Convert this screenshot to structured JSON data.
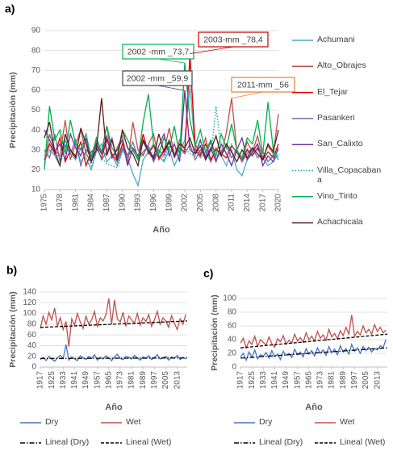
{
  "chart_data": [
    {
      "type": "line",
      "panel_label": "a)",
      "x_label": "Año",
      "y_label": "Precipitación (mm)",
      "x": [
        1975,
        1976,
        1977,
        1978,
        1979,
        1980,
        1981,
        1982,
        1983,
        1984,
        1985,
        1986,
        1987,
        1988,
        1989,
        1990,
        1991,
        1992,
        1993,
        1994,
        1995,
        1996,
        1997,
        1998,
        1999,
        2000,
        2001,
        2002,
        2003,
        2004,
        2005,
        2006,
        2007,
        2008,
        2009,
        2010,
        2011,
        2012,
        2013,
        2014,
        2015,
        2016,
        2017,
        2018,
        2019,
        2020
      ],
      "xlim": [
        1975,
        2020
      ],
      "xticks": [
        1975,
        1978,
        1981,
        1984,
        1987,
        1990,
        1993,
        1996,
        1999,
        2002,
        2005,
        2008,
        2011,
        2014,
        2017,
        2020
      ],
      "ylim": [
        10,
        90
      ],
      "yticks": [
        10,
        20,
        30,
        40,
        50,
        60,
        70,
        80,
        90
      ],
      "grid": true,
      "legend": "right",
      "series": [
        {
          "name": "Achumani",
          "color": "#4bacc6",
          "style": "solid",
          "values": [
            24,
            30,
            27,
            22,
            35,
            28,
            25,
            31,
            26,
            20,
            29,
            33,
            24,
            27,
            22,
            30,
            26,
            18,
            12,
            25,
            29,
            33,
            27,
            24,
            30,
            22,
            28,
            35,
            62,
            30,
            26,
            29,
            24,
            31,
            27,
            22,
            30,
            20,
            17,
            25,
            28,
            33,
            26,
            22,
            24,
            28
          ]
        },
        {
          "name": "Alto_Obrajes",
          "color": "#c0504d",
          "style": "solid",
          "values": [
            22,
            38,
            30,
            27,
            45,
            25,
            33,
            40,
            28,
            24,
            35,
            29,
            42,
            26,
            31,
            37,
            23,
            44,
            30,
            27,
            33,
            38,
            25,
            29,
            41,
            27,
            35,
            30,
            76,
            33,
            28,
            36,
            24,
            31,
            27,
            39,
            56,
            30,
            25,
            34,
            29,
            37,
            26,
            32,
            28,
            48
          ]
        },
        {
          "name": "El_Tejar",
          "color": "#e00000",
          "style": "solid",
          "values": [
            25,
            33,
            28,
            36,
            24,
            30,
            27,
            34,
            22,
            29,
            31,
            26,
            35,
            28,
            24,
            33,
            27,
            30,
            25,
            38,
            28,
            32,
            26,
            30,
            35,
            27,
            31,
            29,
            78.4,
            30,
            27,
            33,
            25,
            30,
            28,
            26,
            32,
            29,
            24,
            30,
            27,
            31,
            25,
            29,
            26,
            33
          ]
        },
        {
          "name": "Pasankeri",
          "color": "#8064a2",
          "style": "solid",
          "values": [
            30,
            26,
            38,
            24,
            32,
            28,
            35,
            22,
            30,
            27,
            33,
            25,
            29,
            36,
            24,
            31,
            27,
            34,
            26,
            29,
            32,
            24,
            30,
            27,
            35,
            26,
            31,
            28,
            33,
            25,
            30,
            27,
            34,
            25,
            29,
            32,
            26,
            30,
            24,
            28,
            31,
            26,
            29,
            24,
            27,
            30
          ]
        },
        {
          "name": "San_Calixto",
          "color": "#7030a0",
          "style": "solid",
          "values": [
            40,
            35,
            29,
            33,
            25,
            38,
            31,
            27,
            36,
            24,
            33,
            28,
            37,
            26,
            30,
            35,
            22,
            31,
            27,
            34,
            29,
            25,
            32,
            38,
            27,
            33,
            24,
            59.9,
            30,
            28,
            35,
            26,
            31,
            24,
            33,
            28,
            22,
            30,
            36,
            25,
            29,
            33,
            22,
            27,
            24,
            31
          ]
        },
        {
          "name": "Villa_Copacabana",
          "color": "#17a3a3",
          "style": "dotted",
          "values": [
            27,
            38,
            30,
            25,
            33,
            28,
            35,
            24,
            29,
            22,
            31,
            26,
            23,
            22,
            21,
            29,
            27,
            30,
            25,
            28,
            32,
            27,
            30,
            25,
            33,
            29,
            26,
            31,
            28,
            27,
            34,
            29,
            26,
            52,
            30,
            28,
            33,
            27,
            25,
            31,
            28,
            30,
            26,
            29,
            27,
            30
          ]
        },
        {
          "name": "Vino_Tinto",
          "color": "#00b050",
          "style": "solid",
          "values": [
            20,
            52,
            35,
            40,
            28,
            45,
            33,
            30,
            38,
            26,
            36,
            29,
            42,
            31,
            27,
            40,
            35,
            30,
            25,
            44,
            58,
            33,
            28,
            36,
            30,
            42,
            27,
            73.7,
            45,
            32,
            40,
            29,
            35,
            27,
            38,
            31,
            43,
            30,
            26,
            36,
            33,
            45,
            28,
            54,
            30,
            25
          ]
        },
        {
          "name": "Achachicala",
          "color": "#5a1e1e",
          "style": "solid",
          "values": [
            36,
            44,
            29,
            22,
            38,
            30,
            26,
            41,
            33,
            24,
            30,
            56,
            27,
            35,
            25,
            40,
            31,
            28,
            22,
            35,
            30,
            26,
            38,
            29,
            34,
            27,
            33,
            31,
            36,
            28,
            32,
            25,
            30,
            37,
            27,
            33,
            29,
            24,
            30,
            26,
            31,
            28,
            25,
            33,
            29,
            40
          ]
        }
      ],
      "annotations": [
        {
          "text": "2002 -mm _73,7",
          "color": "#00b050"
        },
        {
          "text": "2003-mm _78,4",
          "color": "#c00000"
        },
        {
          "text": "2002 -mm _59,9",
          "color": "#404a5a"
        },
        {
          "text": "2011-mm _56",
          "color": "#ed7d31"
        }
      ]
    },
    {
      "type": "line",
      "panel_label": "b)",
      "x_label": "Año",
      "y_label": "Precipitación (mm)",
      "x": [
        1917,
        1919,
        1921,
        1923,
        1925,
        1927,
        1929,
        1931,
        1933,
        1935,
        1937,
        1939,
        1941,
        1943,
        1945,
        1947,
        1949,
        1951,
        1953,
        1955,
        1957,
        1959,
        1961,
        1963,
        1965,
        1967,
        1969,
        1971,
        1973,
        1975,
        1977,
        1979,
        1981,
        1983,
        1985,
        1987,
        1989,
        1991,
        1993,
        1995,
        1997,
        1999,
        2001,
        2003,
        2005,
        2007,
        2009,
        2011,
        2013,
        2015,
        2017,
        2019
      ],
      "xlim": [
        1917,
        2020
      ],
      "xticks": [
        1917,
        1925,
        1933,
        1941,
        1949,
        1957,
        1965,
        1973,
        1981,
        1989,
        1997,
        2005,
        2013
      ],
      "ylim": [
        0,
        140
      ],
      "yticks": [
        0,
        20,
        40,
        60,
        80,
        100,
        120,
        140
      ],
      "grid": true,
      "legend": "below",
      "series": [
        {
          "name": "Dry",
          "color": "#4472c4",
          "style": "solid",
          "values": [
            14,
            18,
            12,
            20,
            15,
            11,
            17,
            22,
            16,
            42,
            13,
            19,
            15,
            12,
            21,
            17,
            14,
            20,
            16,
            23,
            13,
            18,
            15,
            21,
            17,
            12,
            19,
            24,
            16,
            14,
            20,
            18,
            15,
            22,
            17,
            13,
            19,
            16,
            21,
            14,
            18,
            23,
            15,
            17,
            20,
            13,
            19,
            16,
            22,
            14,
            18,
            15
          ]
        },
        {
          "name": "Wet",
          "color": "#c0504d",
          "style": "solid",
          "values": [
            72,
            95,
            80,
            102,
            88,
            110,
            76,
            92,
            70,
            85,
            38,
            90,
            78,
            100,
            84,
            72,
            95,
            80,
            88,
            104,
            76,
            92,
            86,
            98,
            128,
            80,
            125,
            90,
            84,
            102,
            76,
            95,
            88,
            82,
            100,
            78,
            92,
            85,
            98,
            76,
            88,
            104,
            80,
            92,
            86,
            74,
            96,
            82,
            70,
            90,
            80,
            98
          ]
        }
      ],
      "trendlines": [
        {
          "name": "Lineal (Dry)",
          "color": "#000000",
          "style": "dash-dot",
          "x": [
            1917,
            2020
          ],
          "values": [
            16,
            17
          ]
        },
        {
          "name": "Lineal (Wet)",
          "color": "#000000",
          "style": "dashed",
          "x": [
            1917,
            2020
          ],
          "values": [
            74,
            86
          ]
        }
      ]
    },
    {
      "type": "line",
      "panel_label": "c)",
      "x_label": "Año",
      "y_label": "Precipitación (mm)",
      "x": [
        1917,
        1919,
        1921,
        1923,
        1925,
        1927,
        1929,
        1931,
        1933,
        1935,
        1937,
        1939,
        1941,
        1943,
        1945,
        1947,
        1949,
        1951,
        1953,
        1955,
        1957,
        1959,
        1961,
        1963,
        1965,
        1967,
        1969,
        1971,
        1973,
        1975,
        1977,
        1979,
        1981,
        1983,
        1985,
        1987,
        1989,
        1991,
        1993,
        1995,
        1997,
        1999,
        2001,
        2003,
        2005,
        2007,
        2009,
        2011,
        2013,
        2015,
        2017,
        2019
      ],
      "xlim": [
        1917,
        2020
      ],
      "xticks": [
        1917,
        1925,
        1933,
        1941,
        1949,
        1957,
        1965,
        1973,
        1981,
        1989,
        1997,
        2005,
        2013
      ],
      "ylim": [
        0,
        100
      ],
      "yticks": [
        0,
        20,
        40,
        60,
        80,
        100
      ],
      "grid": true,
      "legend": "below",
      "series": [
        {
          "name": "Dry",
          "color": "#4472c4",
          "style": "solid",
          "values": [
            15,
            20,
            10,
            22,
            14,
            25,
            12,
            18,
            16,
            21,
            13,
            24,
            15,
            19,
            11,
            23,
            17,
            20,
            14,
            26,
            18,
            22,
            15,
            27,
            19,
            24,
            16,
            28,
            20,
            25,
            17,
            30,
            21,
            26,
            18,
            31,
            22,
            27,
            19,
            33,
            23,
            28,
            20,
            30,
            24,
            29,
            22,
            27,
            25,
            31,
            28,
            40
          ]
        },
        {
          "name": "Wet",
          "color": "#c0504d",
          "style": "solid",
          "values": [
            35,
            42,
            28,
            38,
            33,
            45,
            30,
            40,
            36,
            32,
            44,
            34,
            29,
            41,
            37,
            46,
            33,
            39,
            35,
            48,
            38,
            43,
            36,
            50,
            40,
            45,
            38,
            52,
            42,
            47,
            39,
            55,
            44,
            49,
            41,
            53,
            46,
            58,
            48,
            76,
            45,
            52,
            47,
            60,
            50,
            55,
            48,
            62,
            52,
            58,
            50,
            54
          ]
        }
      ],
      "trendlines": [
        {
          "name": "Lineal (Dry)",
          "color": "#000000",
          "style": "dash-dot",
          "x": [
            1917,
            2020
          ],
          "values": [
            13,
            28
          ]
        },
        {
          "name": "Lineal (Wet)",
          "color": "#000000",
          "style": "dashed",
          "x": [
            1917,
            2020
          ],
          "values": [
            28,
            48
          ]
        }
      ]
    }
  ]
}
